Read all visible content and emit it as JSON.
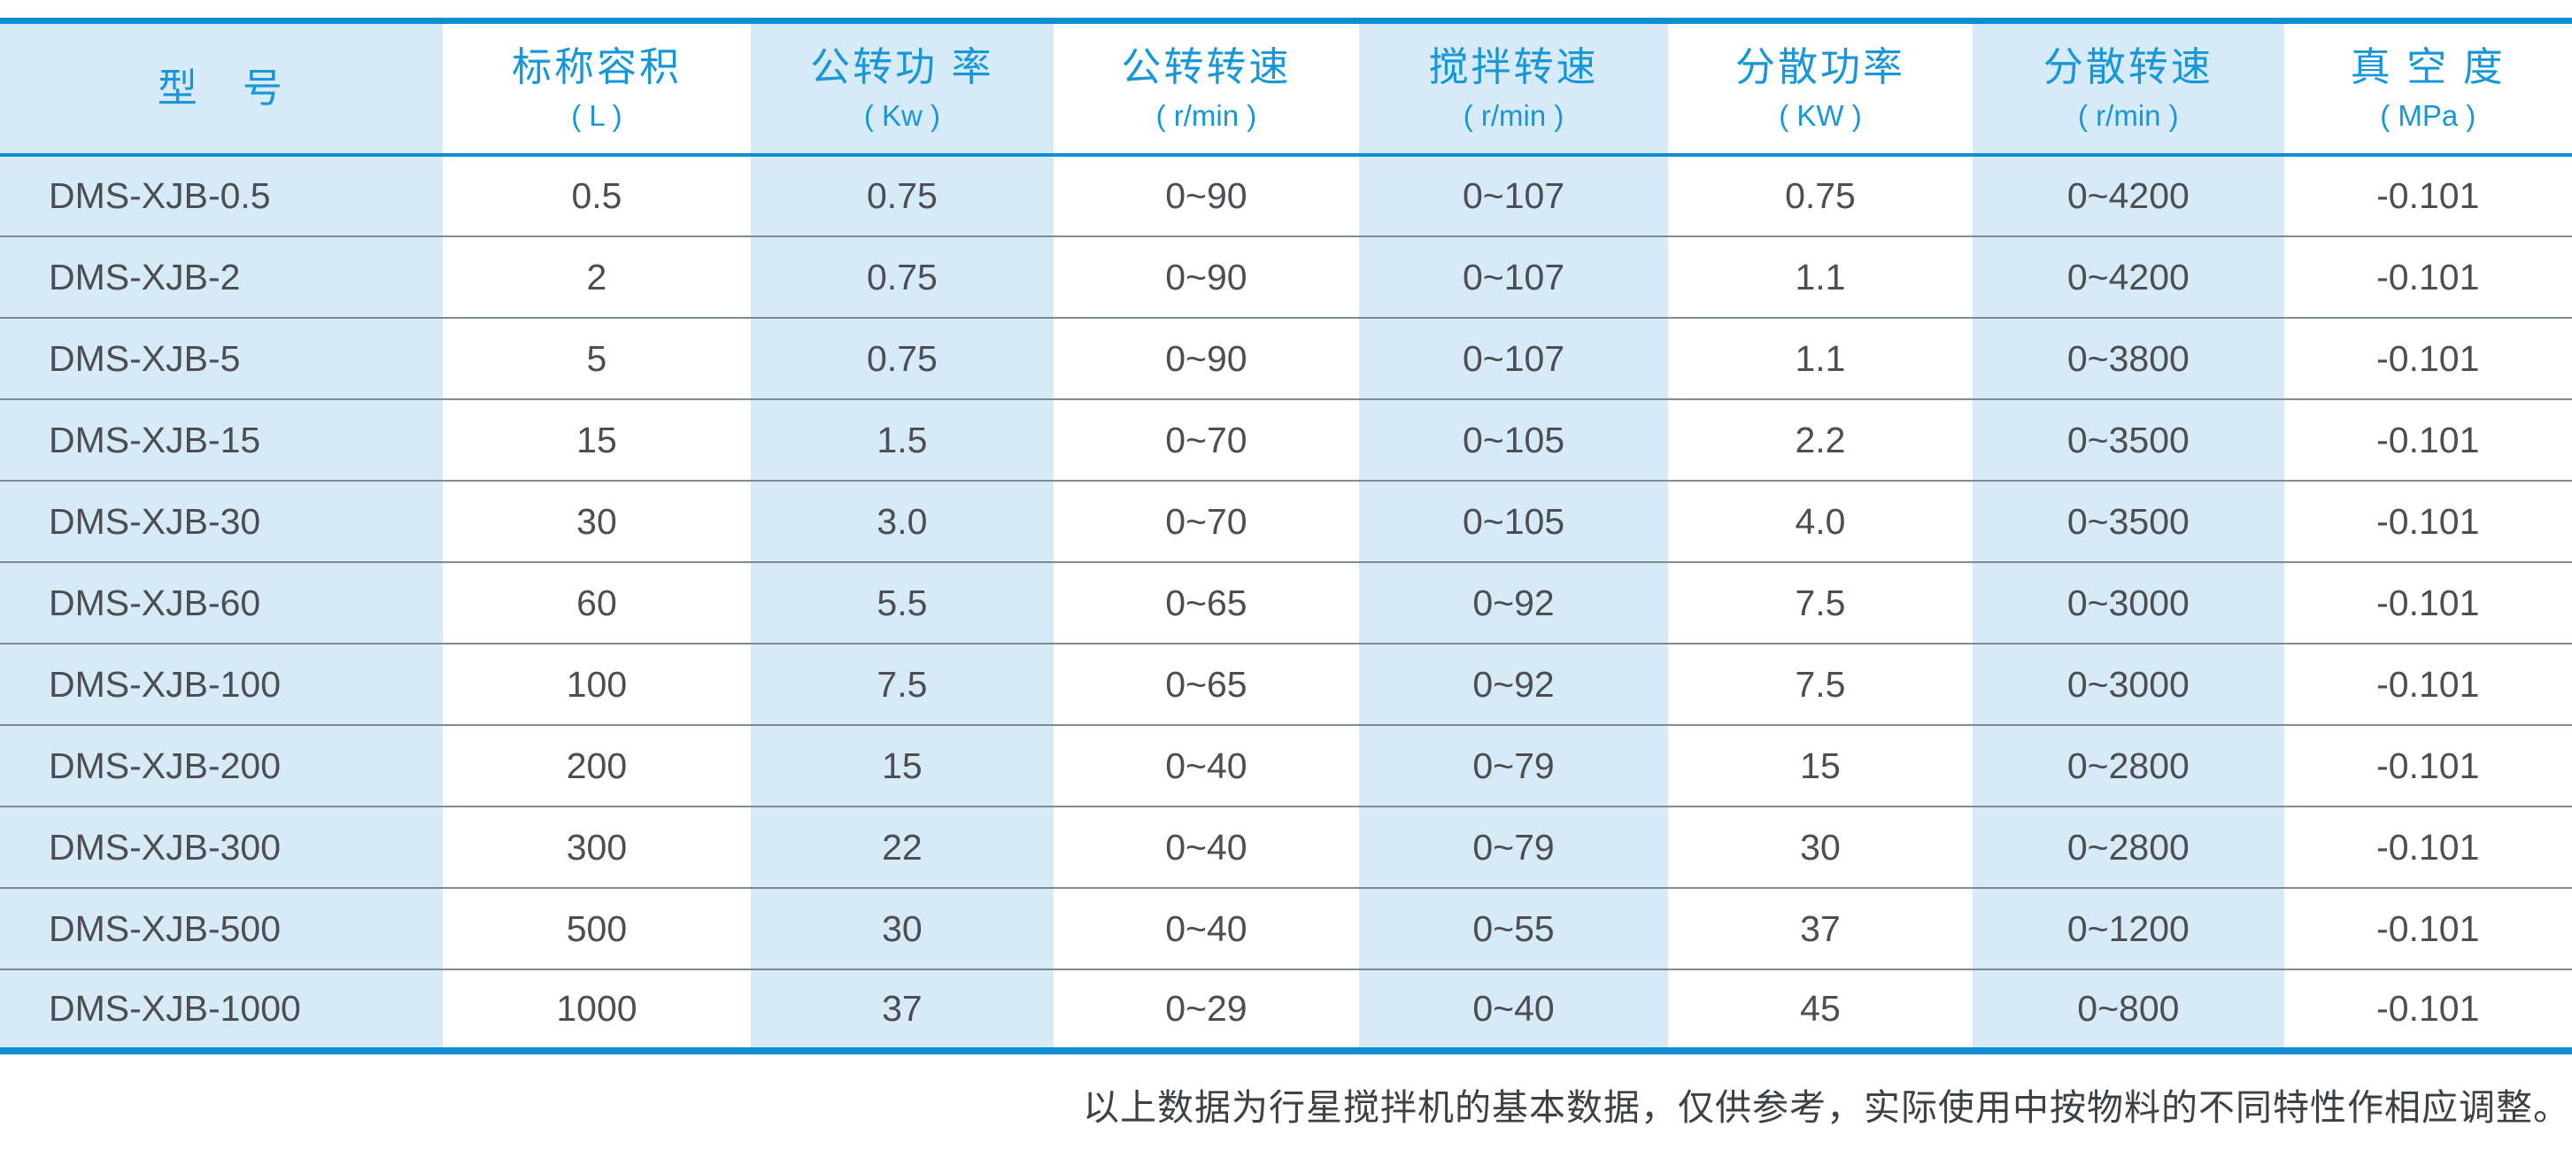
{
  "colors": {
    "accent_line": "#0f8ed2",
    "header_text": "#1797d8",
    "stripe_fill": "#d6eaf8",
    "row_divider": "#808a91",
    "body_text": "#4c4e51",
    "note_text": "#3e4144"
  },
  "table": {
    "column_widths_pct": [
      17.2,
      12.0,
      11.75,
      11.9,
      12.0,
      11.85,
      12.1,
      11.2
    ],
    "columns": [
      {
        "id": "model",
        "label": "型　号",
        "unit": ""
      },
      {
        "id": "nominal-volume",
        "label": "标称容积",
        "unit": "( L )"
      },
      {
        "id": "revolution-power",
        "label": "公转功 率",
        "unit": "( Kw )"
      },
      {
        "id": "revolution-speed",
        "label": "公转转速",
        "unit": "( r/min )"
      },
      {
        "id": "stirring-speed",
        "label": "搅拌转速",
        "unit": "( r/min )"
      },
      {
        "id": "dispersing-power",
        "label": "分散功率",
        "unit": "( KW )"
      },
      {
        "id": "dispersing-speed",
        "label": "分散转速",
        "unit": "( r/min )"
      },
      {
        "id": "vacuum-degree",
        "label": "真 空 度",
        "unit": "( MPa )"
      }
    ],
    "rows": [
      [
        "DMS-XJB-0.5",
        "0.5",
        "0.75",
        "0~90",
        "0~107",
        "0.75",
        "0~4200",
        "-0.101"
      ],
      [
        "DMS-XJB-2",
        "2",
        "0.75",
        "0~90",
        "0~107",
        "1.1",
        "0~4200",
        "-0.101"
      ],
      [
        "DMS-XJB-5",
        "5",
        "0.75",
        "0~90",
        "0~107",
        "1.1",
        "0~3800",
        "-0.101"
      ],
      [
        "DMS-XJB-15",
        "15",
        "1.5",
        "0~70",
        "0~105",
        "2.2",
        "0~3500",
        "-0.101"
      ],
      [
        "DMS-XJB-30",
        "30",
        "3.0",
        "0~70",
        "0~105",
        "4.0",
        "0~3500",
        "-0.101"
      ],
      [
        "DMS-XJB-60",
        "60",
        "5.5",
        "0~65",
        "0~92",
        "7.5",
        "0~3000",
        "-0.101"
      ],
      [
        "DMS-XJB-100",
        "100",
        "7.5",
        "0~65",
        "0~92",
        "7.5",
        "0~3000",
        "-0.101"
      ],
      [
        "DMS-XJB-200",
        "200",
        "15",
        "0~40",
        "0~79",
        "15",
        "0~2800",
        "-0.101"
      ],
      [
        "DMS-XJB-300",
        "300",
        "22",
        "0~40",
        "0~79",
        "30",
        "0~2800",
        "-0.101"
      ],
      [
        "DMS-XJB-500",
        "500",
        "30",
        "0~40",
        "0~55",
        "37",
        "0~1200",
        "-0.101"
      ],
      [
        "DMS-XJB-1000",
        "1000",
        "37",
        "0~29",
        "0~40",
        "45",
        "0~800",
        "-0.101"
      ]
    ]
  },
  "footnote": {
    "text": "以上数据为行星搅拌机的基本数据，仅供参考，实际使用中按物料的不同特性作相应调整。"
  }
}
